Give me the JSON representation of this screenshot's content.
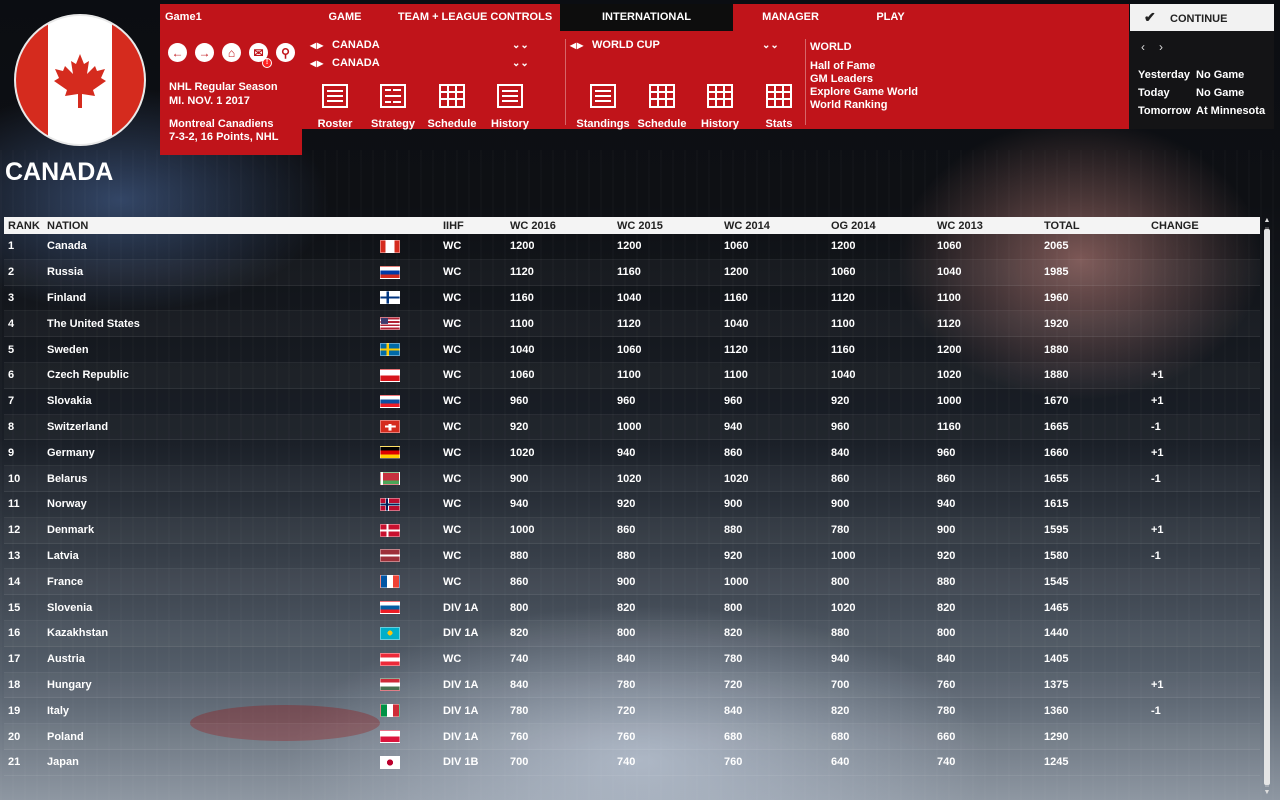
{
  "nav": {
    "game1": "Game1",
    "game": "GAME",
    "team_league": "TEAM + LEAGUE CONTROLS",
    "international": "INTERNATIONAL",
    "manager": "MANAGER",
    "play": "PLAY",
    "continue": "CONTINUE"
  },
  "country_title": "CANADA",
  "info": {
    "season": "NHL Regular Season",
    "date": "MI. NOV. 1 2017",
    "team": "Montreal Canadiens",
    "record": "7-3-2, 16 Points, NHL",
    "mail_badge": "!"
  },
  "selectors": {
    "nation1": "CANADA",
    "nation2": "CANADA",
    "tournament": "WORLD CUP"
  },
  "team_buttons": [
    "Roster",
    "Strategy",
    "Schedule",
    "History"
  ],
  "tournament_buttons": [
    "Standings",
    "Schedule",
    "History",
    "Stats"
  ],
  "world": {
    "title": "WORLD",
    "links": [
      "Hall of Fame",
      "GM Leaders",
      "Explore Game World",
      "World Ranking"
    ]
  },
  "schedule": [
    {
      "day": "Yesterday",
      "value": "No Game"
    },
    {
      "day": "Today",
      "value": "No Game"
    },
    {
      "day": "Tomorrow",
      "value": "At Minnesota"
    }
  ],
  "table": {
    "headers": [
      "RANK",
      "NATION",
      "IIHF",
      "WC 2016",
      "WC 2015",
      "WC 2014",
      "OG 2014",
      "WC 2013",
      "TOTAL",
      "CHANGE"
    ],
    "rows": [
      {
        "rank": "1",
        "nation": "Canada",
        "flag": "canada",
        "iihf": "WC",
        "wc16": "1200",
        "wc15": "1200",
        "wc14": "1060",
        "og14": "1200",
        "wc13": "1060",
        "total": "2065",
        "change": ""
      },
      {
        "rank": "2",
        "nation": "Russia",
        "flag": "russia",
        "iihf": "WC",
        "wc16": "1120",
        "wc15": "1160",
        "wc14": "1200",
        "og14": "1060",
        "wc13": "1040",
        "total": "1985",
        "change": ""
      },
      {
        "rank": "3",
        "nation": "Finland",
        "flag": "finland",
        "iihf": "WC",
        "wc16": "1160",
        "wc15": "1040",
        "wc14": "1160",
        "og14": "1120",
        "wc13": "1100",
        "total": "1960",
        "change": ""
      },
      {
        "rank": "4",
        "nation": "The United States",
        "flag": "usa",
        "iihf": "WC",
        "wc16": "1100",
        "wc15": "1120",
        "wc14": "1040",
        "og14": "1100",
        "wc13": "1120",
        "total": "1920",
        "change": ""
      },
      {
        "rank": "5",
        "nation": "Sweden",
        "flag": "sweden",
        "iihf": "WC",
        "wc16": "1040",
        "wc15": "1060",
        "wc14": "1120",
        "og14": "1160",
        "wc13": "1200",
        "total": "1880",
        "change": ""
      },
      {
        "rank": "6",
        "nation": "Czech Republic",
        "flag": "czech",
        "iihf": "WC",
        "wc16": "1060",
        "wc15": "1100",
        "wc14": "1100",
        "og14": "1040",
        "wc13": "1020",
        "total": "1880",
        "change": "+1"
      },
      {
        "rank": "7",
        "nation": "Slovakia",
        "flag": "slovakia",
        "iihf": "WC",
        "wc16": "960",
        "wc15": "960",
        "wc14": "960",
        "og14": "920",
        "wc13": "1000",
        "total": "1670",
        "change": "+1"
      },
      {
        "rank": "8",
        "nation": "Switzerland",
        "flag": "switzerland",
        "iihf": "WC",
        "wc16": "920",
        "wc15": "1000",
        "wc14": "940",
        "og14": "960",
        "wc13": "1160",
        "total": "1665",
        "change": "-1"
      },
      {
        "rank": "9",
        "nation": "Germany",
        "flag": "germany",
        "iihf": "WC",
        "wc16": "1020",
        "wc15": "940",
        "wc14": "860",
        "og14": "840",
        "wc13": "960",
        "total": "1660",
        "change": "+1"
      },
      {
        "rank": "10",
        "nation": "Belarus",
        "flag": "belarus",
        "iihf": "WC",
        "wc16": "900",
        "wc15": "1020",
        "wc14": "1020",
        "og14": "860",
        "wc13": "860",
        "total": "1655",
        "change": "-1"
      },
      {
        "rank": "11",
        "nation": "Norway",
        "flag": "norway",
        "iihf": "WC",
        "wc16": "940",
        "wc15": "920",
        "wc14": "900",
        "og14": "900",
        "wc13": "940",
        "total": "1615",
        "change": ""
      },
      {
        "rank": "12",
        "nation": "Denmark",
        "flag": "denmark",
        "iihf": "WC",
        "wc16": "1000",
        "wc15": "860",
        "wc14": "880",
        "og14": "780",
        "wc13": "900",
        "total": "1595",
        "change": "+1"
      },
      {
        "rank": "13",
        "nation": "Latvia",
        "flag": "latvia",
        "iihf": "WC",
        "wc16": "880",
        "wc15": "880",
        "wc14": "920",
        "og14": "1000",
        "wc13": "920",
        "total": "1580",
        "change": "-1"
      },
      {
        "rank": "14",
        "nation": "France",
        "flag": "france",
        "iihf": "WC",
        "wc16": "860",
        "wc15": "900",
        "wc14": "1000",
        "og14": "800",
        "wc13": "880",
        "total": "1545",
        "change": ""
      },
      {
        "rank": "15",
        "nation": "Slovenia",
        "flag": "slovenia",
        "iihf": "DIV 1A",
        "wc16": "800",
        "wc15": "820",
        "wc14": "800",
        "og14": "1020",
        "wc13": "820",
        "total": "1465",
        "change": ""
      },
      {
        "rank": "16",
        "nation": "Kazakhstan",
        "flag": "kazakhstan",
        "iihf": "DIV 1A",
        "wc16": "820",
        "wc15": "800",
        "wc14": "820",
        "og14": "880",
        "wc13": "800",
        "total": "1440",
        "change": ""
      },
      {
        "rank": "17",
        "nation": "Austria",
        "flag": "austria",
        "iihf": "WC",
        "wc16": "740",
        "wc15": "840",
        "wc14": "780",
        "og14": "940",
        "wc13": "840",
        "total": "1405",
        "change": ""
      },
      {
        "rank": "18",
        "nation": "Hungary",
        "flag": "hungary",
        "iihf": "DIV 1A",
        "wc16": "840",
        "wc15": "780",
        "wc14": "720",
        "og14": "700",
        "wc13": "760",
        "total": "1375",
        "change": "+1"
      },
      {
        "rank": "19",
        "nation": "Italy",
        "flag": "italy",
        "iihf": "DIV 1A",
        "wc16": "780",
        "wc15": "720",
        "wc14": "840",
        "og14": "820",
        "wc13": "780",
        "total": "1360",
        "change": "-1"
      },
      {
        "rank": "20",
        "nation": "Poland",
        "flag": "poland",
        "iihf": "DIV 1A",
        "wc16": "760",
        "wc15": "760",
        "wc14": "680",
        "og14": "680",
        "wc13": "660",
        "total": "1290",
        "change": ""
      },
      {
        "rank": "21",
        "nation": "Japan",
        "flag": "japan",
        "iihf": "DIV 1B",
        "wc16": "700",
        "wc15": "740",
        "wc14": "760",
        "og14": "640",
        "wc13": "740",
        "total": "1245",
        "change": ""
      }
    ]
  },
  "colors": {
    "accent_red": "#c0141a",
    "dark": "#0d0d0d"
  }
}
